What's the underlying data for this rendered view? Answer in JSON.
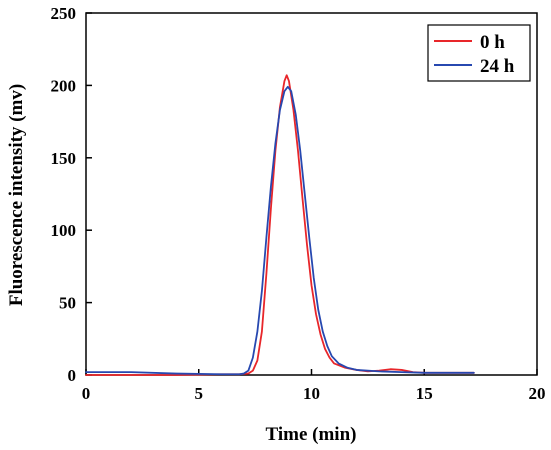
{
  "chart_data": {
    "type": "line",
    "xlabel": "Time (min)",
    "ylabel": "Fluorescence intensity (mv)",
    "xlim": [
      0,
      20
    ],
    "ylim": [
      0,
      250
    ],
    "xticks": [
      0,
      5,
      10,
      15,
      20
    ],
    "yticks": [
      0,
      50,
      100,
      150,
      200,
      250
    ],
    "grid": false,
    "legend_position": "top-right",
    "series": [
      {
        "name": "0 h",
        "color": "#e8262a",
        "points": [
          [
            0,
            0
          ],
          [
            2,
            0
          ],
          [
            4,
            0
          ],
          [
            6,
            0.5
          ],
          [
            6.8,
            0.5
          ],
          [
            7.2,
            1
          ],
          [
            7.4,
            3
          ],
          [
            7.6,
            10
          ],
          [
            7.8,
            30
          ],
          [
            8.0,
            70
          ],
          [
            8.2,
            115
          ],
          [
            8.4,
            155
          ],
          [
            8.6,
            185
          ],
          [
            8.8,
            203
          ],
          [
            8.9,
            207
          ],
          [
            9.0,
            203
          ],
          [
            9.2,
            183
          ],
          [
            9.4,
            155
          ],
          [
            9.6,
            122
          ],
          [
            9.8,
            90
          ],
          [
            10.0,
            62
          ],
          [
            10.2,
            42
          ],
          [
            10.4,
            28
          ],
          [
            10.6,
            18
          ],
          [
            10.8,
            12
          ],
          [
            11.0,
            8
          ],
          [
            11.5,
            5
          ],
          [
            12.0,
            3.5
          ],
          [
            12.5,
            2.5
          ],
          [
            13.0,
            3
          ],
          [
            13.5,
            4
          ],
          [
            14.0,
            3.5
          ],
          [
            14.5,
            2
          ],
          [
            15.0,
            1.5
          ],
          [
            16.0,
            1.5
          ],
          [
            17.2,
            1.5
          ]
        ]
      },
      {
        "name": "24 h",
        "color": "#2748b0",
        "points": [
          [
            0,
            2
          ],
          [
            2,
            2
          ],
          [
            4,
            1
          ],
          [
            6,
            0.5
          ],
          [
            6.8,
            0.5
          ],
          [
            7.0,
            1
          ],
          [
            7.2,
            3
          ],
          [
            7.4,
            12
          ],
          [
            7.6,
            30
          ],
          [
            7.8,
            58
          ],
          [
            8.0,
            95
          ],
          [
            8.2,
            130
          ],
          [
            8.4,
            160
          ],
          [
            8.6,
            183
          ],
          [
            8.8,
            196
          ],
          [
            8.95,
            199
          ],
          [
            9.1,
            196
          ],
          [
            9.3,
            180
          ],
          [
            9.5,
            155
          ],
          [
            9.7,
            125
          ],
          [
            9.9,
            95
          ],
          [
            10.1,
            67
          ],
          [
            10.3,
            45
          ],
          [
            10.5,
            30
          ],
          [
            10.7,
            20
          ],
          [
            10.9,
            13
          ],
          [
            11.2,
            8
          ],
          [
            11.6,
            5
          ],
          [
            12.0,
            3.5
          ],
          [
            13.0,
            2.5
          ],
          [
            14.0,
            2
          ],
          [
            15.0,
            1.5
          ],
          [
            16.0,
            1.5
          ],
          [
            17.2,
            1.5
          ]
        ]
      }
    ]
  }
}
